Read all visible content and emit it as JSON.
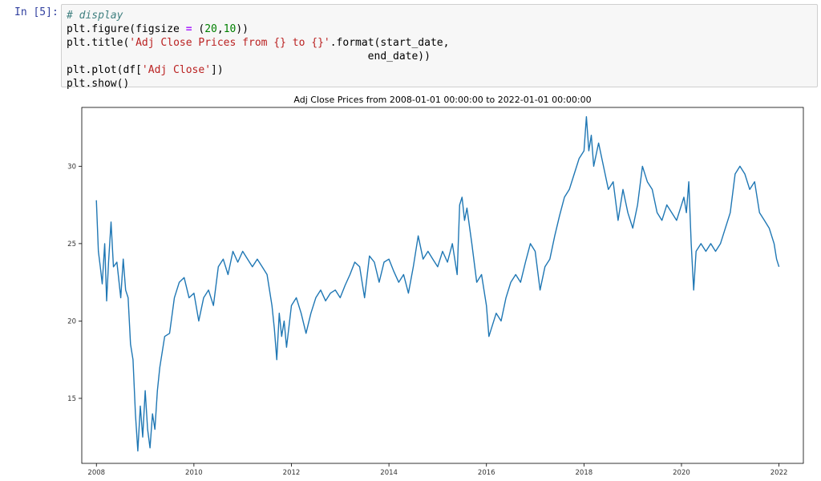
{
  "cell": {
    "prompt": "In [5]:",
    "code": {
      "comment": "# display",
      "line2_a": "plt.figure(figsize ",
      "line2_op": "=",
      "line2_b": " (",
      "line2_n1": "20",
      "line2_c": ",",
      "line2_n2": "10",
      "line2_d": "))",
      "line3_a": "plt.title(",
      "line3_str": "'Adj Close Prices from {} to {}'",
      "line3_b": ".format(start_date,",
      "line4": "                                                end_date))",
      "line5_a": "plt.plot(df[",
      "line5_str": "'Adj Close'",
      "line5_b": "])",
      "line6": "plt.show()"
    }
  },
  "chart_data": {
    "type": "line",
    "title": "Adj Close Prices from 2008-01-01 00:00:00 to 2022-01-01 00:00:00",
    "xlabel": "",
    "ylabel": "",
    "x_ticks": [
      "2008",
      "2010",
      "2012",
      "2014",
      "2016",
      "2018",
      "2020",
      "2022"
    ],
    "y_ticks": [
      15,
      20,
      25,
      30
    ],
    "xlim": [
      2007.7,
      2022.5
    ],
    "ylim": [
      10.8,
      33.8
    ],
    "grid": false,
    "color": "#1f77b4",
    "series": [
      {
        "x": [
          2008.0,
          2008.04,
          2008.08,
          2008.12,
          2008.17,
          2008.21,
          2008.25,
          2008.3,
          2008.35,
          2008.42,
          2008.5,
          2008.55,
          2008.6,
          2008.65,
          2008.7,
          2008.75,
          2008.8,
          2008.85,
          2008.9,
          2008.95,
          2009.0,
          2009.05,
          2009.1,
          2009.15,
          2009.2,
          2009.25,
          2009.3,
          2009.4,
          2009.5,
          2009.6,
          2009.7,
          2009.8,
          2009.9,
          2010.0,
          2010.1,
          2010.2,
          2010.3,
          2010.4,
          2010.5,
          2010.6,
          2010.7,
          2010.8,
          2010.9,
          2011.0,
          2011.1,
          2011.2,
          2011.3,
          2011.4,
          2011.5,
          2011.6,
          2011.65,
          2011.7,
          2011.75,
          2011.8,
          2011.85,
          2011.9,
          2012.0,
          2012.1,
          2012.2,
          2012.3,
          2012.4,
          2012.5,
          2012.6,
          2012.7,
          2012.8,
          2012.9,
          2013.0,
          2013.1,
          2013.2,
          2013.3,
          2013.4,
          2013.5,
          2013.6,
          2013.7,
          2013.8,
          2013.9,
          2014.0,
          2014.1,
          2014.2,
          2014.3,
          2014.4,
          2014.5,
          2014.6,
          2014.7,
          2014.8,
          2014.9,
          2015.0,
          2015.1,
          2015.2,
          2015.3,
          2015.4,
          2015.45,
          2015.5,
          2015.55,
          2015.6,
          2015.7,
          2015.8,
          2015.9,
          2016.0,
          2016.05,
          2016.1,
          2016.2,
          2016.3,
          2016.4,
          2016.5,
          2016.6,
          2016.7,
          2016.8,
          2016.9,
          2017.0,
          2017.1,
          2017.2,
          2017.3,
          2017.4,
          2017.5,
          2017.6,
          2017.7,
          2017.8,
          2017.9,
          2018.0,
          2018.05,
          2018.1,
          2018.15,
          2018.2,
          2018.3,
          2018.4,
          2018.5,
          2018.6,
          2018.7,
          2018.8,
          2018.9,
          2019.0,
          2019.1,
          2019.2,
          2019.3,
          2019.4,
          2019.5,
          2019.6,
          2019.7,
          2019.8,
          2019.9,
          2020.0,
          2020.05,
          2020.1,
          2020.15,
          2020.2,
          2020.25,
          2020.3,
          2020.4,
          2020.5,
          2020.6,
          2020.7,
          2020.8,
          2020.9,
          2021.0,
          2021.1,
          2021.2,
          2021.3,
          2021.4,
          2021.5,
          2021.6,
          2021.7,
          2021.8,
          2021.9,
          2021.95,
          2022.0
        ],
        "y": [
          27.8,
          24.5,
          23.5,
          22.4,
          25.0,
          21.3,
          23.8,
          26.4,
          23.5,
          23.8,
          21.5,
          24.0,
          22.0,
          21.5,
          18.5,
          17.5,
          14.0,
          11.6,
          14.5,
          12.5,
          15.5,
          13.0,
          11.8,
          14.0,
          13.0,
          15.5,
          17.0,
          19.0,
          19.2,
          21.5,
          22.5,
          22.8,
          21.5,
          21.8,
          20.0,
          21.5,
          22.0,
          21.0,
          23.5,
          24.0,
          23.0,
          24.5,
          23.8,
          24.5,
          24.0,
          23.5,
          24.0,
          23.5,
          23.0,
          21.0,
          19.5,
          17.5,
          20.5,
          19.0,
          20.0,
          18.3,
          21.0,
          21.5,
          20.5,
          19.2,
          20.5,
          21.5,
          22.0,
          21.3,
          21.8,
          22.0,
          21.5,
          22.3,
          23.0,
          23.8,
          23.5,
          21.5,
          24.2,
          23.8,
          22.5,
          23.8,
          24.0,
          23.2,
          22.5,
          23.0,
          21.8,
          23.5,
          25.5,
          24.0,
          24.5,
          24.0,
          23.5,
          24.5,
          23.8,
          25.0,
          23.0,
          27.5,
          28.0,
          26.5,
          27.3,
          25.0,
          22.5,
          23.0,
          21.0,
          19.0,
          19.5,
          20.5,
          20.0,
          21.5,
          22.5,
          23.0,
          22.5,
          23.8,
          25.0,
          24.5,
          22.0,
          23.5,
          24.0,
          25.5,
          26.8,
          28.0,
          28.5,
          29.5,
          30.5,
          31.0,
          33.2,
          31.0,
          32.0,
          30.0,
          31.5,
          30.0,
          28.5,
          29.0,
          26.5,
          28.5,
          27.0,
          26.0,
          27.5,
          30.0,
          29.0,
          28.5,
          27.0,
          26.5,
          27.5,
          27.0,
          26.5,
          27.5,
          28.0,
          27.0,
          29.0,
          25.0,
          22.0,
          24.5,
          25.0,
          24.5,
          25.0,
          24.5,
          25.0,
          26.0,
          27.0,
          29.5,
          30.0,
          29.5,
          28.5,
          29.0,
          27.0,
          26.5,
          26.0,
          25.0,
          24.0,
          23.5
        ]
      }
    ]
  }
}
